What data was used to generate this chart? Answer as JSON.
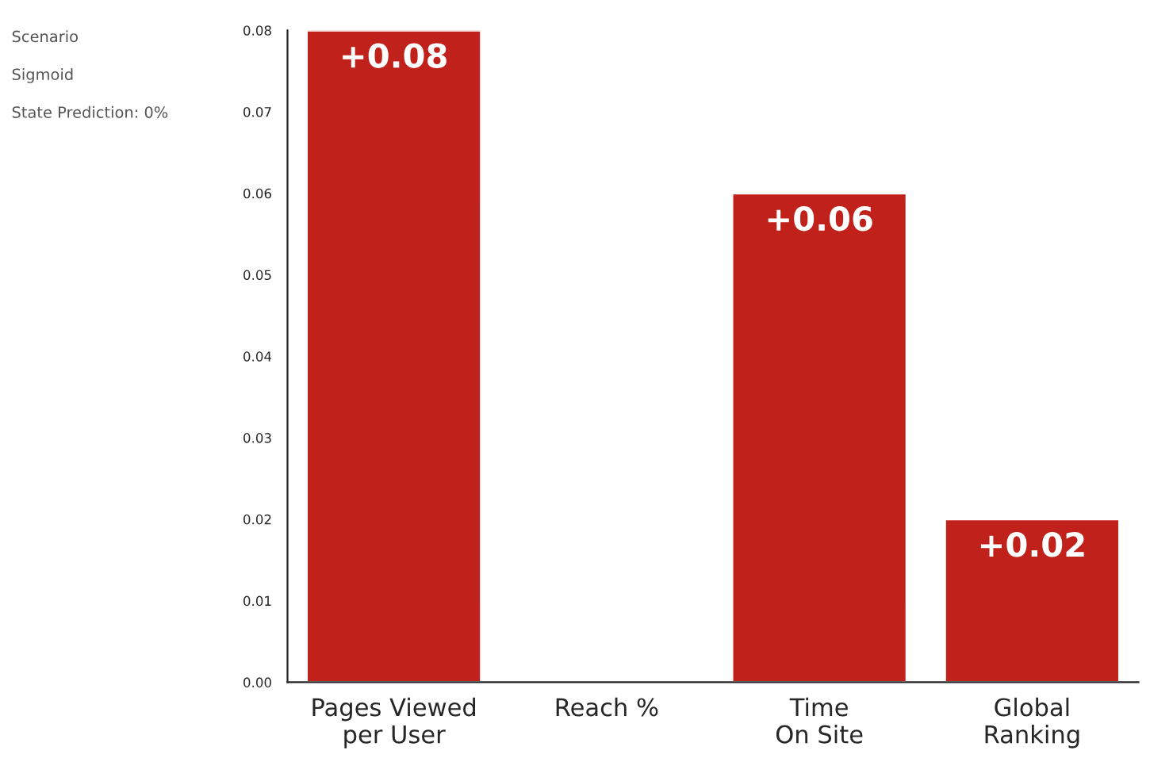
{
  "chart_data": {
    "type": "bar",
    "categories": [
      "Pages Viewed\nper User",
      "Reach %",
      "Time\nOn Site",
      "Global\nRanking"
    ],
    "values": [
      0.08,
      null,
      0.06,
      0.02
    ],
    "value_labels": [
      "+0.08",
      null,
      "+0.06",
      "+0.02"
    ],
    "color": "#c0211a",
    "ylim": [
      0,
      0.08
    ],
    "yticks": [
      {
        "value": 0,
        "label": "0.00"
      },
      {
        "value": 0.01,
        "label": "0.01"
      },
      {
        "value": 0.02,
        "label": "0.02"
      },
      {
        "value": 0.03,
        "label": "0.03"
      },
      {
        "value": 0.04,
        "label": "0.04"
      },
      {
        "value": 0.05,
        "label": "0.05"
      },
      {
        "value": 0.06,
        "label": "0.06"
      },
      {
        "value": 0.07,
        "label": "0.07"
      },
      {
        "value": 0.08,
        "label": "0.08"
      }
    ],
    "annotations": [
      "Scenario",
      "Sigmoid",
      "State Prediction: 0%"
    ],
    "grid": false
  }
}
